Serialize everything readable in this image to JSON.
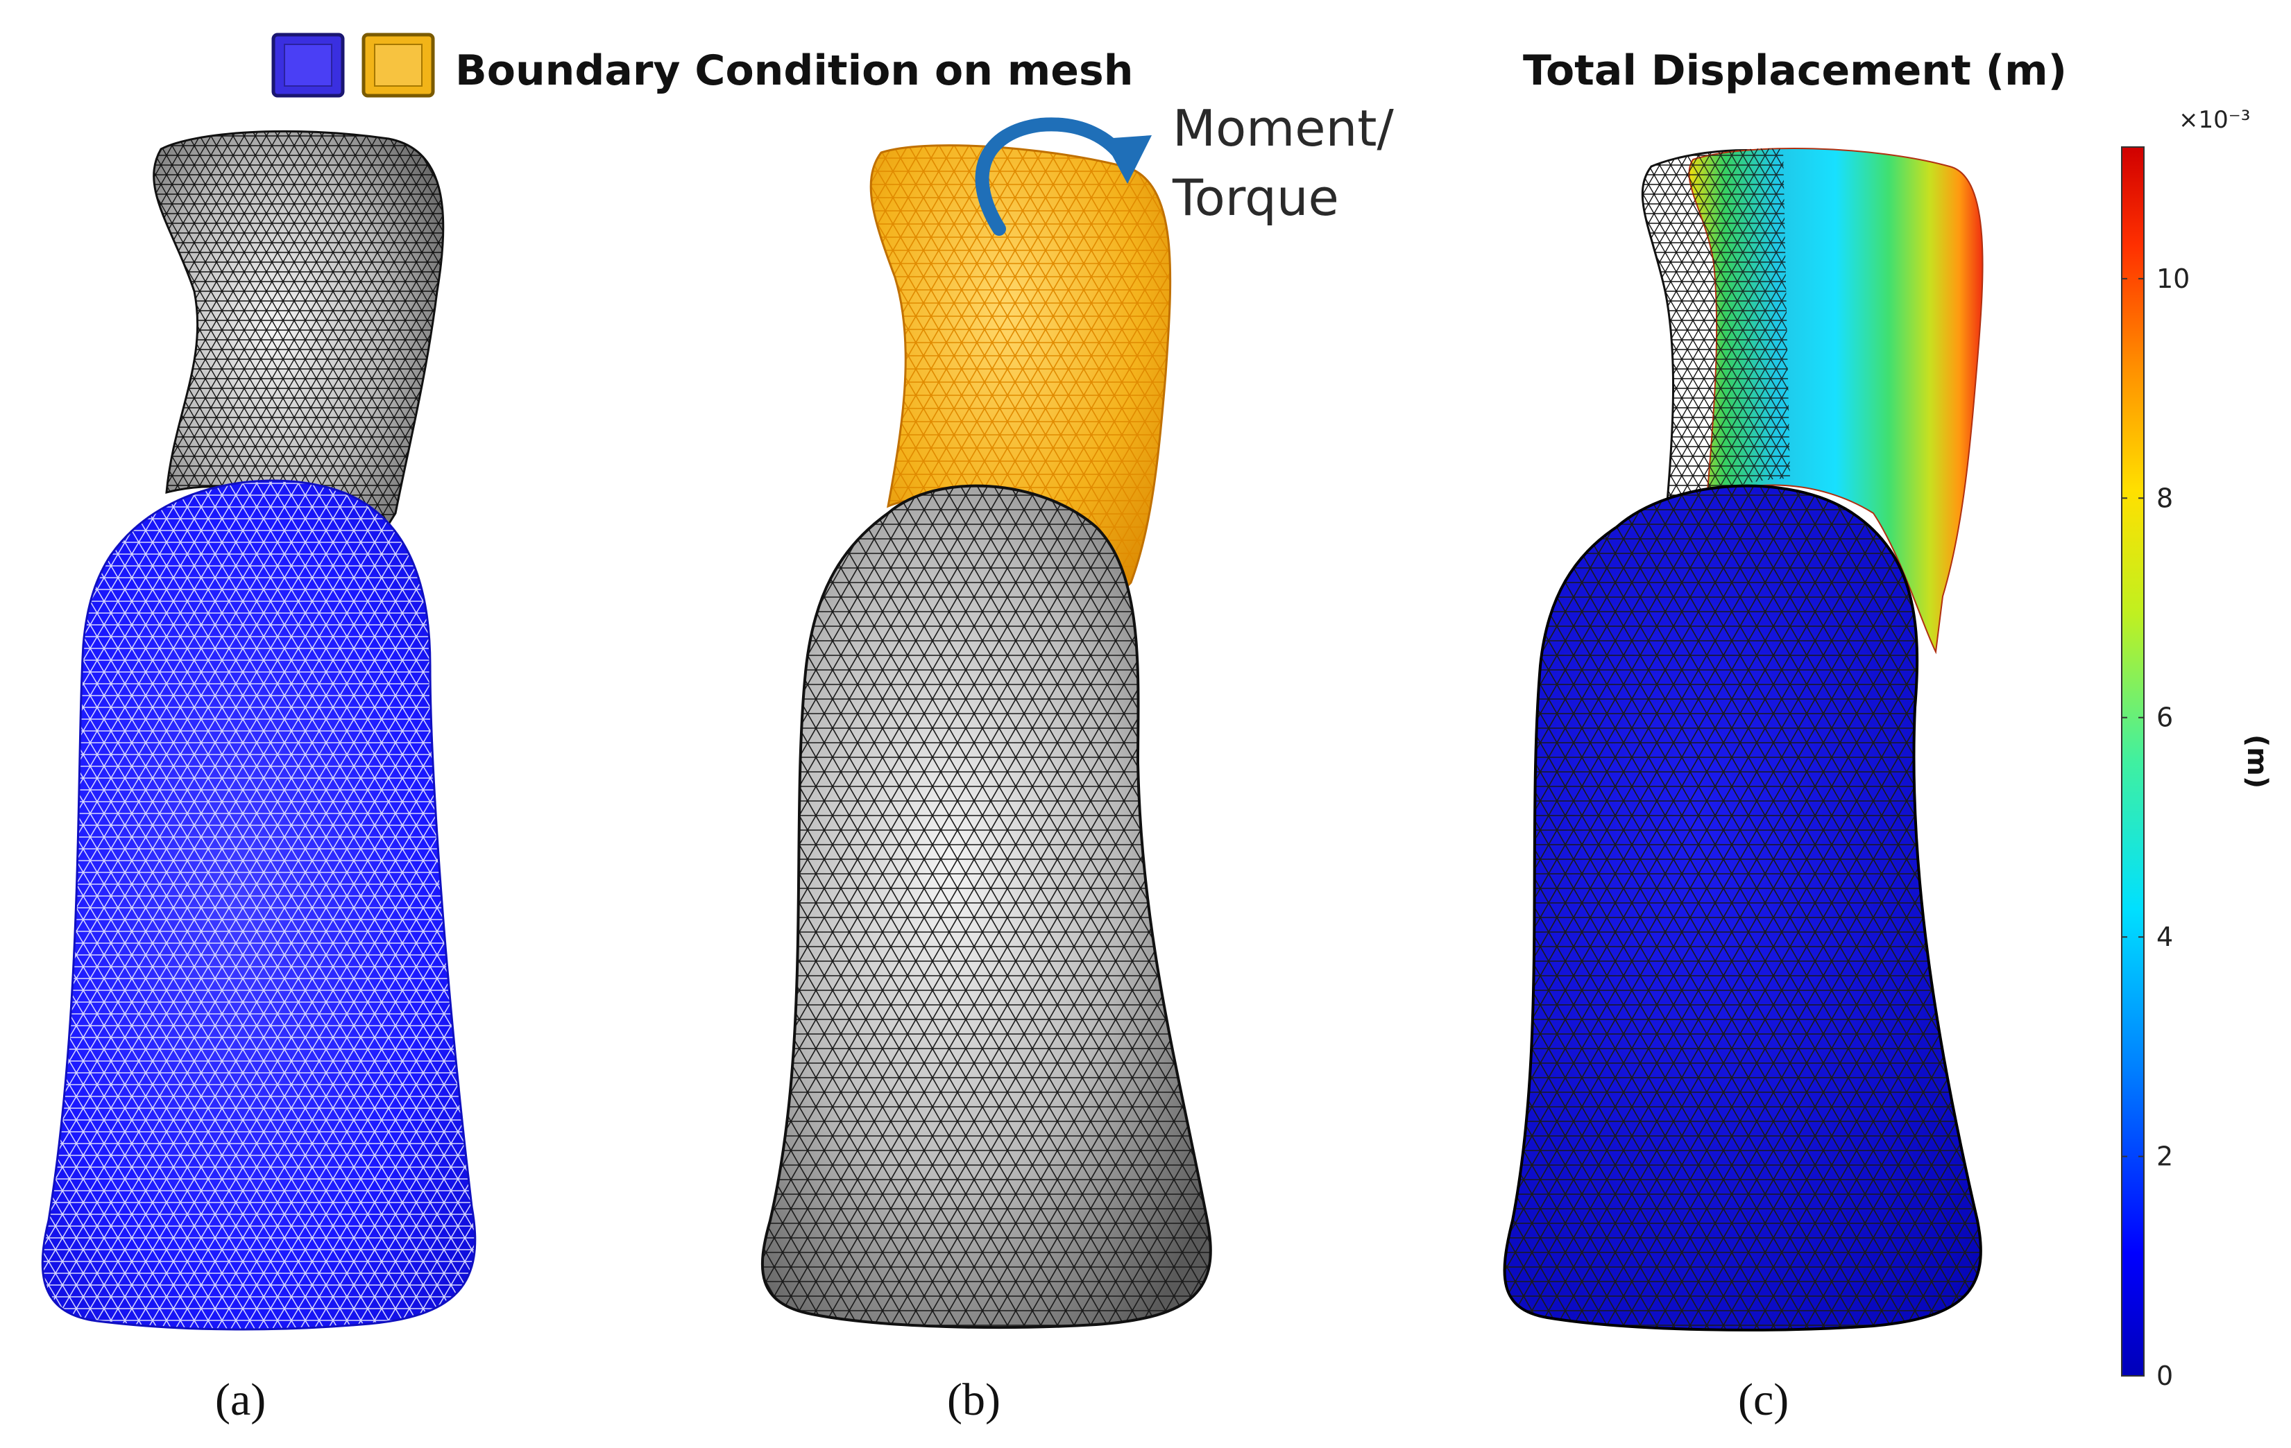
{
  "legend": {
    "title": "Boundary Condition on mesh",
    "swatch_colors": [
      "#3a2fe0",
      "#f2b418"
    ]
  },
  "panel_b": {
    "annotation_line1": "Moment/",
    "annotation_line2": "Torque",
    "arrow_color": "#1f6fb8",
    "loaded_color": "#f4b21c"
  },
  "panel_a": {
    "fixed_color": "#1a18ff"
  },
  "panel_c": {
    "title": "Total Displacement (m)",
    "colorbar": {
      "unit_label": "(m)",
      "exponent_label": "×10⁻³",
      "min": 0,
      "max": 11.2,
      "ticks": [
        "0",
        "2",
        "4",
        "6",
        "8",
        "10"
      ],
      "tick_values": [
        0,
        2,
        4,
        6,
        8,
        10
      ]
    }
  },
  "panel_labels": [
    "(a)",
    "(b)",
    "(c)"
  ],
  "colors": {
    "mesh_gray": "#bdbdbd",
    "mesh_line": "#1a1a1a",
    "displacement_blue": "#0a0ad8"
  }
}
